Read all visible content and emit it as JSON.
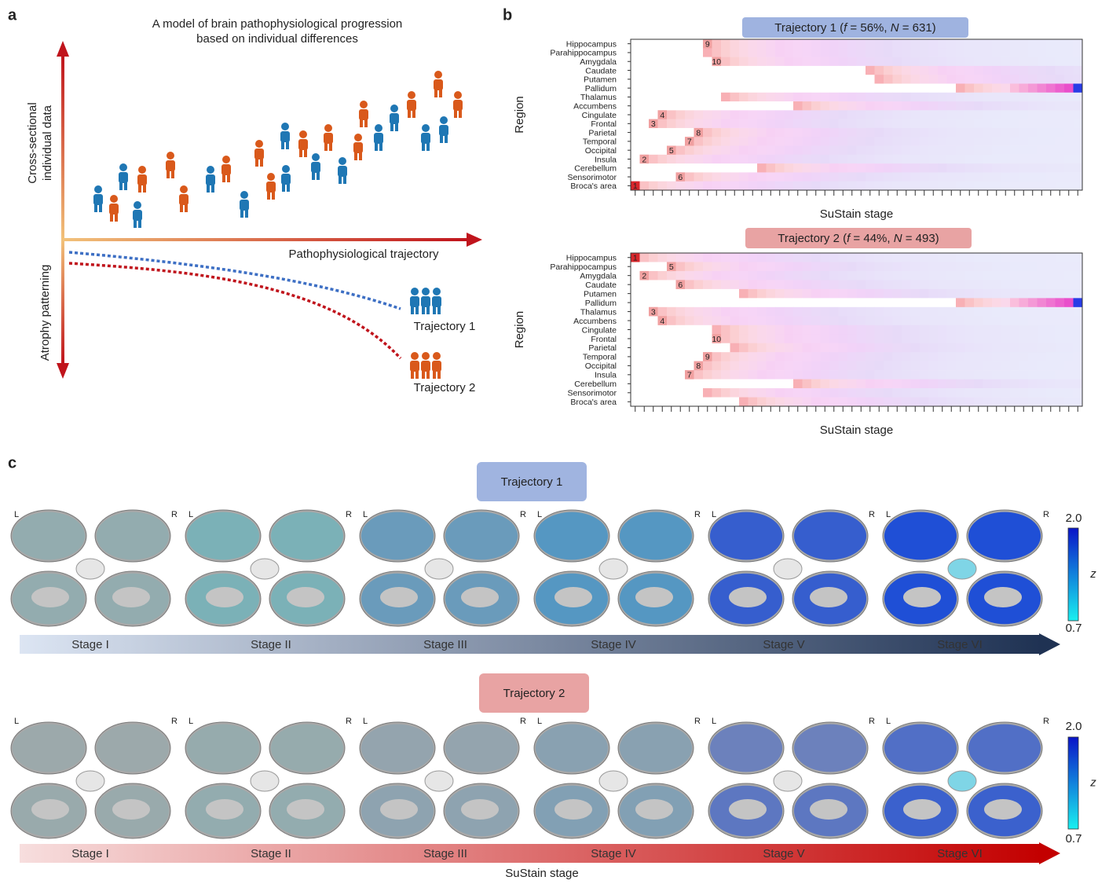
{
  "panel_a": {
    "label": "a",
    "title": [
      "A model of brain pathophysiological progression",
      "based on individual differences"
    ],
    "y_axis_up": [
      "Cross-sectional",
      "individual data"
    ],
    "y_axis_down": "Atrophy patterning",
    "x_axis": "Pathophysiological trajectory",
    "groups": [
      "Trajectory 1",
      "Trajectory 2"
    ]
  },
  "panel_b": {
    "label": "b",
    "regions": [
      "Hippocampus",
      "Parahippocampus",
      "Amygdala",
      "Caudate",
      "Putamen",
      "Pallidum",
      "Thalamus",
      "Accumbens",
      "Cingulate",
      "Frontal",
      "Parietal",
      "Temporal",
      "Occipital",
      "Insula",
      "Cerebellum",
      "Sensorimotor",
      "Broca's area"
    ],
    "y_label": "Region",
    "x_label": "SuStain stage",
    "heatmaps": [
      {
        "title": [
          "Trajectory 1 (",
          "f",
          " = 56%, ",
          "N",
          " = 631)"
        ],
        "markers": [
          "1",
          "2",
          "3",
          "4",
          "5",
          "6",
          "7",
          "8",
          "9",
          "10"
        ]
      },
      {
        "title": [
          "Trajectory 2 (",
          "f",
          " = 44%, ",
          "N",
          " = 493)"
        ],
        "markers": [
          "1",
          "2",
          "3",
          "4",
          "5",
          "6",
          "7",
          "8",
          "9",
          "10"
        ]
      }
    ]
  },
  "panel_c": {
    "label": "c",
    "hemispheres": [
      "L",
      "R"
    ],
    "colorbar_title": "z",
    "colorbar_ticks": [
      {
        "value": 2.0,
        "label": "2.0"
      },
      {
        "value": 0.7,
        "label": "0.7"
      }
    ],
    "x_label": "SuStain stage",
    "trajectories": [
      {
        "title": "Trajectory 1",
        "stages": [
          "Stage I",
          "Stage II",
          "Stage III",
          "Stage IV",
          "Stage V",
          "Stage VI"
        ]
      },
      {
        "title": "Trajectory 2",
        "stages": [
          "Stage I",
          "Stage II",
          "Stage III",
          "Stage IV",
          "Stage V",
          "Stage VI"
        ]
      }
    ]
  }
}
